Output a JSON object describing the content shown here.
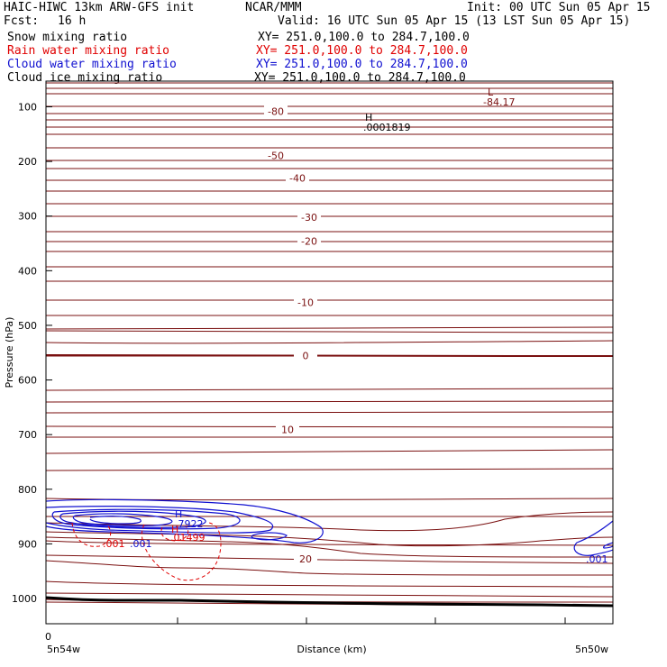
{
  "header": {
    "model": "HAIC-HIWC 13km ARW-GFS init",
    "org": "NCAR/MMM",
    "init": "Init: 00 UTC Sun 05 Apr 15",
    "fcst_label": "Fcst:",
    "fcst_value": "16 h",
    "valid": "Valid: 16 UTC Sun 05 Apr 15 (13 LST Sun 05 Apr 15)"
  },
  "fields": [
    {
      "name": "Snow mixing ratio",
      "xy": "XY= 251.0,100.0 to 284.7,100.0",
      "color": "#000000"
    },
    {
      "name": "Rain water mixing ratio",
      "xy": "XY= 251.0,100.0 to 284.7,100.0",
      "color": "#e00000"
    },
    {
      "name": "Cloud water mixing ratio",
      "xy": "XY= 251.0,100.0 to 284.7,100.0",
      "color": "#1010d0"
    },
    {
      "name": "Cloud ice mixing ratio",
      "xy": "XY= 251.0,100.0 to 284.7,100.0",
      "color": "#000000"
    }
  ],
  "chart_data": {
    "type": "contour cross-section",
    "ylabel": "Pressure (hPa)",
    "xlabel": "Distance (km)",
    "x_start_label": "5n54w",
    "x_end_label": "5n50w",
    "x_zero_label": "0",
    "yticks": [
      100,
      200,
      300,
      400,
      500,
      600,
      700,
      800,
      900,
      1000
    ],
    "ylim": [
      1050,
      60
    ],
    "temperature_contour_labels": [
      {
        "value": "-80",
        "p": 108
      },
      {
        "value": "-50",
        "p": 189
      },
      {
        "value": "-40",
        "p": 230
      },
      {
        "value": "-30",
        "p": 302
      },
      {
        "value": "-20",
        "p": 346
      },
      {
        "value": "-10",
        "p": 458
      },
      {
        "value": "0",
        "p": 555
      },
      {
        "value": "10",
        "p": 691
      },
      {
        "value": "20",
        "p": 927
      }
    ],
    "extrema": {
      "low_marker": "L",
      "low_value": "-84.17",
      "high_marker": "H",
      "high_value": ".0001819",
      "cloud_water_high": "H",
      "cloud_water_high_value": ".7922",
      "rain_high": "H",
      "rain_high_value": ".01499"
    },
    "rain_contour_labels": [
      ".001",
      ".001"
    ],
    "cloud_water_contour_labels": [
      ".001"
    ],
    "colors": {
      "temperature": "#7a1010",
      "rain": "#e00000",
      "cloud_water": "#1010d0",
      "terrain": "#000000"
    }
  }
}
